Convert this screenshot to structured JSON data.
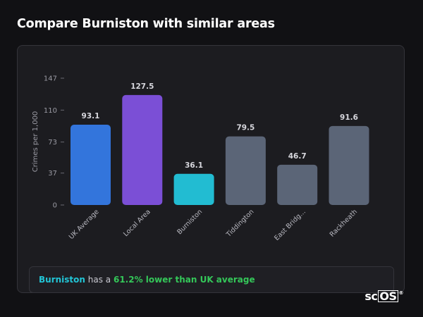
{
  "page": {
    "title": "Compare Burniston with similar areas"
  },
  "chart_data": {
    "type": "bar",
    "title": "",
    "xlabel": "",
    "ylabel": "Crimes per 1,000",
    "ylim": [
      0,
      147
    ],
    "y_ticks": [
      0,
      37,
      73,
      110,
      147
    ],
    "grid": false,
    "categories": [
      "UK Average",
      "Local Area",
      "Burniston",
      "Tiddington",
      "East Bridg...",
      "Rackheath"
    ],
    "values": [
      93.1,
      127.5,
      36.1,
      79.5,
      46.7,
      91.6
    ],
    "value_labels": [
      "93.1",
      "127.5",
      "36.1",
      "79.5",
      "46.7",
      "91.6"
    ],
    "bar_colors": [
      "#3375dc",
      "#7b4fd6",
      "#22bcd2",
      "#5b6577",
      "#5b6577",
      "#5b6577"
    ]
  },
  "summary": {
    "area": "Burniston",
    "prefix": "has a",
    "stat": "61.2% lower than UK average"
  },
  "brand": {
    "logo_left": "sc",
    "logo_boxed": "OS",
    "logo_mark": "®"
  },
  "colors": {
    "background": "#111114",
    "card": "#1c1c20",
    "area_highlight": "#22c5d6",
    "stat_highlight": "#34c759"
  }
}
